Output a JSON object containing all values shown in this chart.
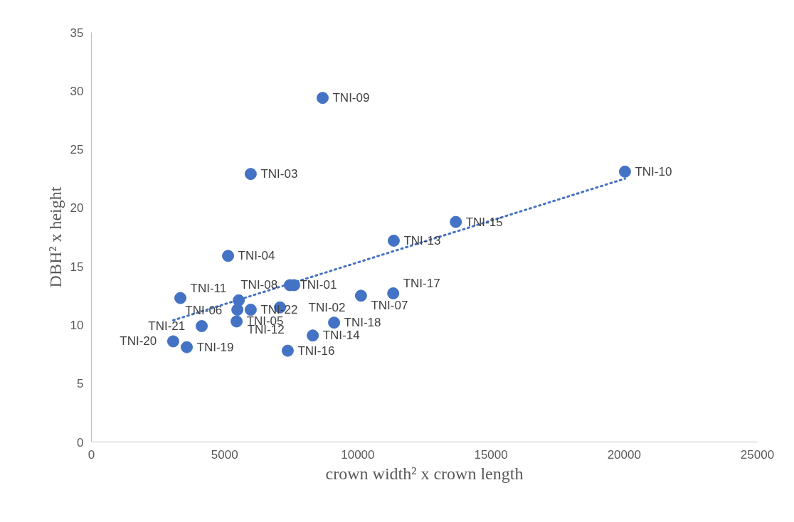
{
  "chart_data": {
    "type": "scatter",
    "xlabel": "crown width² x crown length",
    "ylabel": "DBH² x height",
    "xlim": [
      0,
      25000
    ],
    "xticks": [
      0,
      5000,
      10000,
      15000,
      20000,
      25000
    ],
    "ylim": [
      0,
      35
    ],
    "yticks": [
      0,
      5,
      10,
      15,
      20,
      25,
      30,
      35
    ],
    "grid": false,
    "series": [
      {
        "marker": "circle",
        "color": "#4472c4",
        "x": [
          8680,
          5980,
          20030,
          13680,
          11350,
          5130,
          7450,
          7610,
          10120,
          11330,
          3340,
          5530,
          5480,
          5980,
          7080,
          5450,
          4140,
          9110,
          8310,
          3070,
          3580,
          7370
        ],
        "values": [
          29.4,
          22.9,
          23.1,
          18.8,
          17.2,
          15.9,
          13.4,
          13.4,
          12.5,
          12.7,
          12.3,
          12.1,
          11.3,
          11.3,
          11.5,
          10.3,
          9.9,
          10.2,
          9.1,
          8.6,
          8.1,
          7.8
        ]
      },
      {
        "type": "line",
        "line_style": "dotted",
        "marker": "none",
        "color": "#4472c4",
        "x": [
          3070,
          20030
        ],
        "values": [
          10.4,
          22.5
        ]
      }
    ],
    "annotations": [
      {
        "text": "TNI-09",
        "x": 8680,
        "y": 29.4
      },
      {
        "text": "TNI-03",
        "x": 5980,
        "y": 22.9
      },
      {
        "text": "TNI-10",
        "x": 20030,
        "y": 23.1
      },
      {
        "text": "TNI-15",
        "x": 13680,
        "y": 18.8
      },
      {
        "text": "TNI-13",
        "x": 11350,
        "y": 17.2
      },
      {
        "text": "TNI-04",
        "x": 5130,
        "y": 15.9
      },
      {
        "text": "TNI-01",
        "x": 7450,
        "y": 13.4
      },
      {
        "text": "TNI-08",
        "x": 7610,
        "y": 13.4
      },
      {
        "text": "TNI-07",
        "x": 10120,
        "y": 12.5
      },
      {
        "text": "TNI-17",
        "x": 11330,
        "y": 12.7
      },
      {
        "text": "TNI-11",
        "x": 3340,
        "y": 12.3
      },
      {
        "text": "TNI-06",
        "x": 5530,
        "y": 12.1
      },
      {
        "text": "TNI-12",
        "x": 5480,
        "y": 11.3
      },
      {
        "text": "TNI-22",
        "x": 5980,
        "y": 11.3
      },
      {
        "text": "TNI-02",
        "x": 7080,
        "y": 11.5
      },
      {
        "text": "TNI-05",
        "x": 5450,
        "y": 10.3
      },
      {
        "text": "TNI-21",
        "x": 4140,
        "y": 9.9
      },
      {
        "text": "TNI-18",
        "x": 9110,
        "y": 10.2
      },
      {
        "text": "TNI-14",
        "x": 8310,
        "y": 9.1
      },
      {
        "text": "TNI-20",
        "x": 3070,
        "y": 8.6
      },
      {
        "text": "TNI-19",
        "x": 3580,
        "y": 8.1
      },
      {
        "text": "TNI-16",
        "x": 7370,
        "y": 7.8
      }
    ]
  }
}
